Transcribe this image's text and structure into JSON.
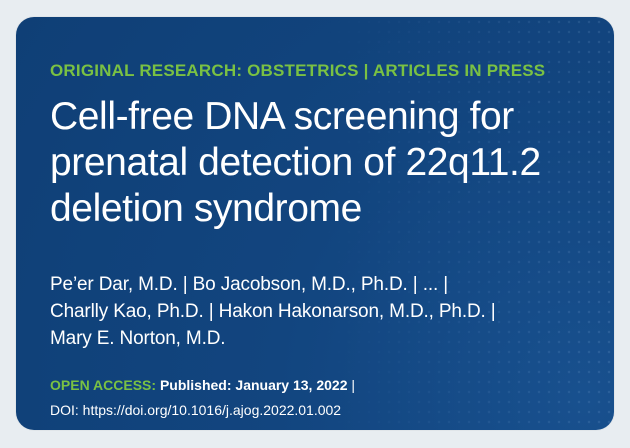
{
  "kicker": "ORIGINAL RESEARCH: OBSTETRICS | ARTICLES IN PRESS",
  "title": {
    "line1": "Cell-free DNA screening for",
    "line2": "prenatal detection of 22q11.2",
    "line3": "deletion syndrome"
  },
  "authors": {
    "line1": "Pe’er Dar, M.D. | Bo Jacobson, M.D., Ph.D. | ... |",
    "line2": "Charlly Kao, Ph.D. | Hakon Hakonarson, M.D., Ph.D. |",
    "line3": "Mary E. Norton, M.D."
  },
  "publication": {
    "open_access": "OPEN ACCESS:",
    "published": "Published: January 13, 2022",
    "separator": "|",
    "doi": "DOI: https://doi.org/10.1016/j.ajog.2022.01.002"
  },
  "colors": {
    "background": "#e8edf1",
    "card": "#12457f",
    "accent": "#7ac143",
    "text": "#ffffff"
  }
}
